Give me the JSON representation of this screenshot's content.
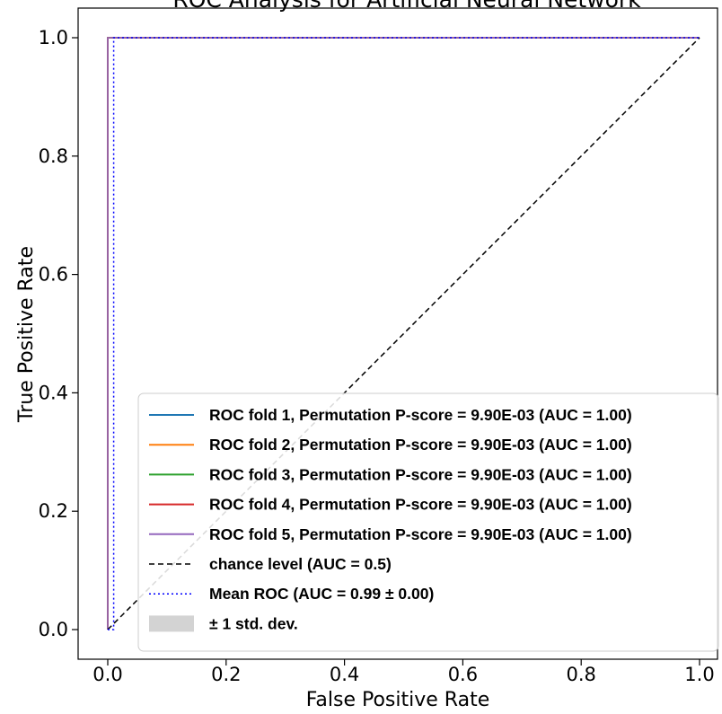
{
  "chart_data": {
    "type": "line",
    "title": "ROC Analysis for Artificial Neural Network",
    "xlabel": "False Positive Rate",
    "ylabel": "True Positive Rate",
    "xlim": [
      -0.05,
      1.05
    ],
    "ylim": [
      -0.05,
      1.05
    ],
    "x_ticks": [
      "0.0",
      "0.2",
      "0.4",
      "0.6",
      "0.8",
      "1.0"
    ],
    "y_ticks": [
      "0.0",
      "0.2",
      "0.4",
      "0.6",
      "0.8",
      "1.0"
    ],
    "grid": false,
    "legend_position": "lower-right",
    "series": [
      {
        "name": "ROC fold 1, Permutation P-score = 9.90E-03 (AUC = 1.00)",
        "color": "#1f77b4",
        "style": "solid",
        "x": [
          0,
          0,
          1
        ],
        "y": [
          0,
          1,
          1
        ]
      },
      {
        "name": "ROC fold 2, Permutation P-score = 9.90E-03 (AUC = 1.00)",
        "color": "#ff7f0e",
        "style": "solid",
        "x": [
          0,
          0,
          1
        ],
        "y": [
          0,
          1,
          1
        ]
      },
      {
        "name": "ROC fold 3, Permutation P-score = 9.90E-03 (AUC = 1.00)",
        "color": "#2ca02c",
        "style": "solid",
        "x": [
          0,
          0,
          1
        ],
        "y": [
          0,
          1,
          1
        ]
      },
      {
        "name": "ROC fold 4, Permutation P-score = 9.90E-03 (AUC = 1.00)",
        "color": "#d62728",
        "style": "solid",
        "x": [
          0,
          0,
          1
        ],
        "y": [
          0,
          1,
          1
        ]
      },
      {
        "name": "ROC fold 5, Permutation P-score = 9.90E-03 (AUC = 1.00)",
        "color": "#9467bd",
        "style": "solid",
        "x": [
          0,
          0,
          1
        ],
        "y": [
          0,
          1,
          1
        ]
      },
      {
        "name": "chance level (AUC = 0.5)",
        "color": "#000000",
        "style": "dashed",
        "x": [
          0,
          1
        ],
        "y": [
          0,
          1
        ]
      },
      {
        "name": "Mean ROC (AUC = 0.99 ± 0.00)",
        "color": "#0000ff",
        "style": "dotted",
        "x": [
          0,
          0.01,
          0.01,
          1
        ],
        "y": [
          0,
          0,
          1,
          1
        ]
      }
    ],
    "std_band": {
      "name": "± 1 std. dev.",
      "color": "#d3d3d3"
    }
  }
}
